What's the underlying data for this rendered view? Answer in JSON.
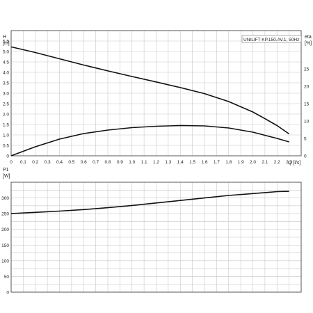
{
  "legend_title": "UNILIFT KP.150.AV.1, 50Hz",
  "chart_data": [
    {
      "type": "line",
      "panel": "top",
      "x_label": "Q [l/s]",
      "xlim": [
        0,
        2.4
      ],
      "x_ticks": [
        "0",
        "0.1",
        "0.2",
        "0.3",
        "0.4",
        "0.5",
        "0.6",
        "0.7",
        "0.8",
        "0.9",
        "1.0",
        "1.1",
        "1.2",
        "1.3",
        "1.4",
        "1.5",
        "1.6",
        "1.7",
        "1.8",
        "1.9",
        "2.0",
        "2.1",
        "2.2",
        "2.3"
      ],
      "y_label_top": "H",
      "y_label_unit": "[m]",
      "ylim": [
        0,
        6
      ],
      "y_ticks": [
        "0",
        "0.5",
        "1.0",
        "1.5",
        "2.0",
        "2.5",
        "3.0",
        "3.5",
        "4.0",
        "4.5",
        "5.0",
        "5.5"
      ],
      "y2_label_top": "eta",
      "y2_label_unit": "[%]",
      "y2lim": [
        0,
        36
      ],
      "y2_ticks": [
        "0",
        "5",
        "10",
        "15",
        "20",
        "25"
      ],
      "grid": true,
      "series": [
        {
          "axis": "left",
          "x": [
            0,
            0.2,
            0.4,
            0.6,
            0.8,
            1.0,
            1.2,
            1.4,
            1.6,
            1.8,
            2.0,
            2.1,
            2.2,
            2.3
          ],
          "y": [
            5.22,
            4.95,
            4.65,
            4.35,
            4.07,
            3.8,
            3.54,
            3.27,
            2.98,
            2.6,
            2.1,
            1.78,
            1.45,
            1.05
          ]
        },
        {
          "axis": "right",
          "x": [
            0,
            0.2,
            0.4,
            0.6,
            0.8,
            1.0,
            1.2,
            1.4,
            1.6,
            1.8,
            2.0,
            2.1,
            2.2,
            2.3
          ],
          "y": [
            0,
            2.6,
            4.8,
            6.4,
            7.4,
            8.1,
            8.5,
            8.7,
            8.6,
            8.0,
            6.8,
            5.9,
            5.0,
            4.0
          ]
        }
      ]
    },
    {
      "type": "line",
      "panel": "bottom",
      "xlim": [
        0,
        2.4
      ],
      "y_label_top": "P1",
      "y_label_unit": "[W]",
      "ylim": [
        0,
        350
      ],
      "y_ticks": [
        "0",
        "50",
        "100",
        "150",
        "200",
        "250",
        "300"
      ],
      "grid": true,
      "series": [
        {
          "x": [
            0,
            0.2,
            0.4,
            0.6,
            0.8,
            1.0,
            1.2,
            1.4,
            1.6,
            1.8,
            2.0,
            2.2,
            2.3
          ],
          "y": [
            250,
            254,
            258,
            263,
            269,
            276,
            284,
            292,
            300,
            308,
            314,
            320,
            321
          ]
        }
      ]
    }
  ]
}
